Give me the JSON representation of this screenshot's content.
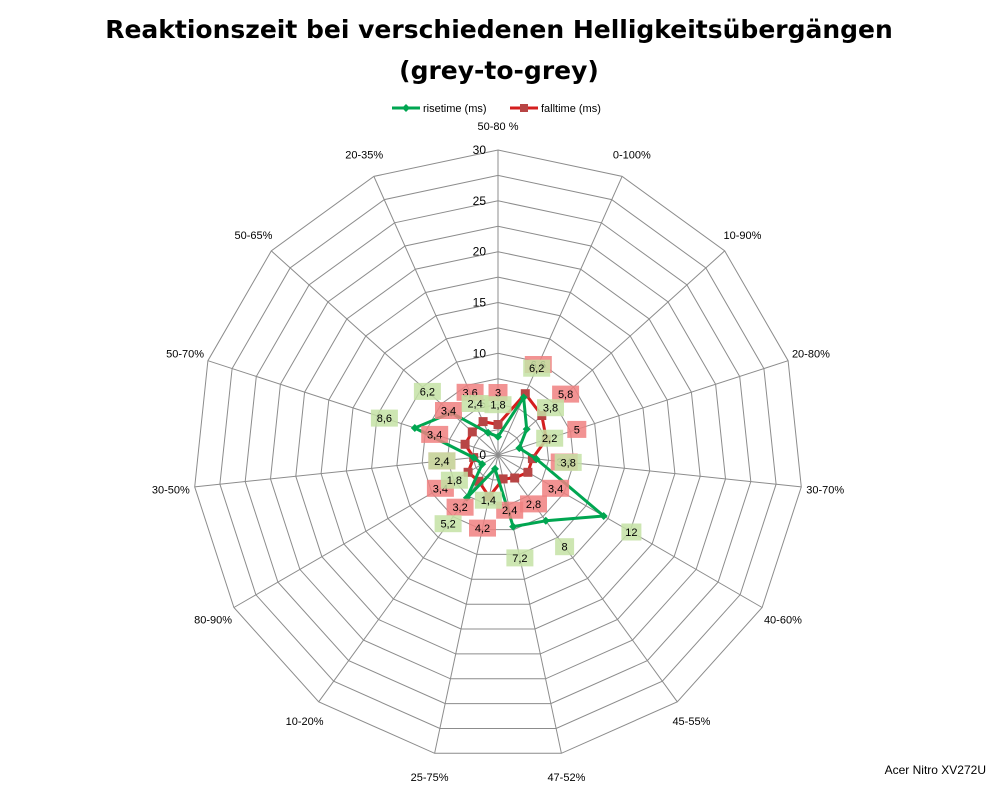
{
  "chart_data": {
    "type": "radar",
    "title_line1": "Reaktionszeit bei verschiedenen Helligkeitsübergängen",
    "title_line2": "(grey-to-grey)",
    "categories": [
      "50-80 %",
      "0-100%",
      "10-90%",
      "20-80%",
      "30-70%",
      "40-60%",
      "45-55%",
      "47-52%",
      "25-75%",
      "10-20%",
      "80-90%",
      "30-50%",
      "50-70%",
      "50-65%",
      "20-35%"
    ],
    "tick_labels": [
      "0",
      "5",
      "10",
      "15",
      "20",
      "25",
      "30"
    ],
    "rmax": 30,
    "grid": true,
    "legend_position": "top",
    "series": [
      {
        "name": "risetime (ms)",
        "color": "#00a651",
        "label_bg": "#c4e2a4",
        "values": [
          1.8,
          6.2,
          3.8,
          2.2,
          3.8,
          12,
          8,
          7.2,
          1.4,
          5.2,
          1.8,
          2.4,
          8.6,
          6.2,
          2.4
        ],
        "labels": [
          "1,8",
          "6,2",
          "3,8",
          "2,2",
          "3,8",
          "12",
          "8",
          "7,2",
          "1,4",
          "5,2",
          "1,8",
          "2,4",
          "8,6",
          "6,2",
          "2,4"
        ]
      },
      {
        "name": "falltime (ms)",
        "color": "#d41e1e",
        "label_bg": "#f08080",
        "values": [
          3,
          6.6,
          5.8,
          5,
          3.4,
          3.4,
          2.8,
          2.4,
          4.2,
          3.2,
          3.4,
          2.4,
          3.4,
          3.4,
          3.6
        ],
        "labels": [
          "3",
          "6,6",
          "5,8",
          "5",
          "3,4",
          "3,4",
          "2,8",
          "2,4",
          "4,2",
          "3,2",
          "3,4",
          "2,4",
          "3,4",
          "3,4",
          "3,6"
        ]
      }
    ],
    "credit": "Acer Nitro XV272U"
  }
}
